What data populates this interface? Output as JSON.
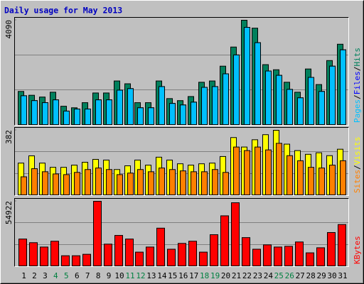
{
  "chart_data": [
    {
      "type": "bar",
      "title": "Daily usage for May 2013",
      "legend_separator": "/",
      "ylim": [
        0,
        4090
      ],
      "yticks": [
        4090
      ],
      "series": [
        {
          "name": "Hits",
          "color": "#00805c",
          "values": [
            1300,
            1150,
            1080,
            1270,
            720,
            660,
            860,
            1240,
            1240,
            1710,
            1600,
            860,
            860,
            1710,
            1020,
            940,
            1100,
            1660,
            1710,
            2290,
            3040,
            4090,
            3780,
            2350,
            2150,
            1660,
            1270,
            2180,
            1570,
            2510,
            3150
          ]
        },
        {
          "name": "Files",
          "color": "#0000ff",
          "values": [
            1130,
            940,
            860,
            970,
            530,
            610,
            610,
            970,
            970,
            1350,
            1410,
            660,
            660,
            1490,
            830,
            770,
            880,
            1460,
            1490,
            1990,
            2730,
            3810,
            3210,
            2100,
            1930,
            1380,
            1050,
            1850,
            1300,
            2290,
            2930
          ]
        },
        {
          "name": "Pages",
          "color": "#00c0ff",
          "values": [
            1130,
            940,
            860,
            970,
            530,
            610,
            610,
            970,
            970,
            1350,
            1410,
            660,
            660,
            1490,
            830,
            770,
            880,
            1460,
            1490,
            1990,
            2730,
            3810,
            3210,
            2100,
            1930,
            1380,
            1050,
            1850,
            1300,
            2290,
            2930
          ]
        }
      ]
    },
    {
      "type": "bar",
      "legend_separator": "/",
      "ylim": [
        0,
        382
      ],
      "yticks": [
        382
      ],
      "series": [
        {
          "name": "Visits",
          "color": "#ffff00",
          "values": [
            188,
            231,
            188,
            163,
            163,
            176,
            193,
            210,
            206,
            150,
            172,
            206,
            176,
            223,
            206,
            184,
            176,
            184,
            188,
            227,
            339,
            283,
            326,
            356,
            382,
            300,
            262,
            240,
            249,
            232,
            270
          ]
        },
        {
          "name": "Sites",
          "color": "#ff8000",
          "values": [
            107,
            155,
            137,
            124,
            120,
            133,
            150,
            159,
            150,
            120,
            129,
            150,
            137,
            159,
            150,
            142,
            137,
            137,
            150,
            133,
            283,
            262,
            283,
            266,
            305,
            232,
            202,
            163,
            159,
            176,
            202
          ]
        }
      ]
    },
    {
      "type": "bar",
      "ylim": [
        0,
        54922
      ],
      "yticks": [
        54922
      ],
      "categories": [
        "1",
        "2",
        "3",
        "4",
        "5",
        "6",
        "7",
        "8",
        "9",
        "10",
        "11",
        "12",
        "13",
        "14",
        "15",
        "16",
        "17",
        "18",
        "19",
        "20",
        "21",
        "22",
        "23",
        "24",
        "25",
        "26",
        "27",
        "28",
        "29",
        "30",
        "31"
      ],
      "category_colors": [
        "#000000",
        "#000000",
        "#000000",
        "#008040",
        "#008040",
        "#000000",
        "#000000",
        "#000000",
        "#000000",
        "#000000",
        "#008040",
        "#008040",
        "#000000",
        "#000000",
        "#000000",
        "#000000",
        "#000000",
        "#008040",
        "#008040",
        "#000000",
        "#000000",
        "#000000",
        "#000000",
        "#000000",
        "#008040",
        "#008040",
        "#000000",
        "#000000",
        "#000000",
        "#000000",
        "#000000"
      ],
      "series": [
        {
          "name": "KBytes",
          "color": "#ff0000",
          "values": [
            22840,
            19750,
            16050,
            20980,
            8640,
            8640,
            9870,
            54922,
            18510,
            25910,
            22840,
            11720,
            16050,
            32090,
            14190,
            19130,
            20980,
            11720,
            26530,
            42580,
            53690,
            24060,
            14190,
            17890,
            16050,
            16660,
            20360,
            11110,
            15430,
            28380,
            35170
          ]
        }
      ]
    }
  ]
}
